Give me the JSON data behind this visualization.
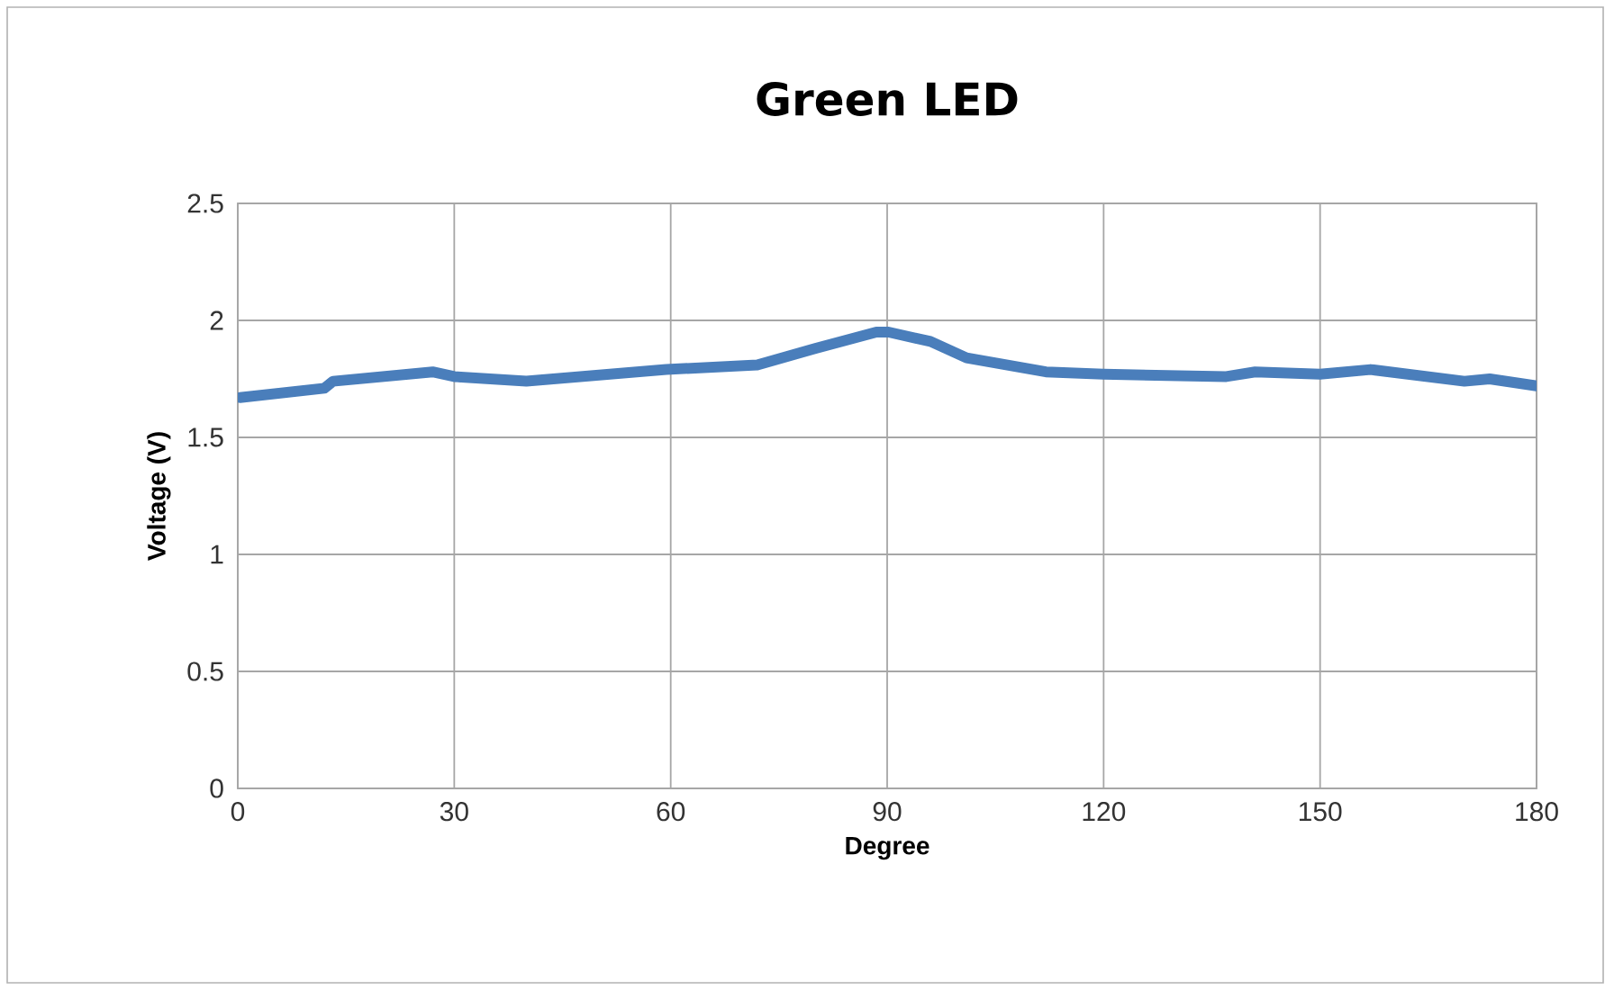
{
  "chart_data": {
    "type": "line",
    "title": "Green LED",
    "xlabel": "Degree",
    "ylabel": "Voltage (V)",
    "x": [
      0.3,
      12,
      13.2,
      27,
      30,
      40,
      59.4,
      72,
      80,
      88.5,
      90.2,
      96,
      101,
      112,
      120,
      137,
      141,
      150,
      157,
      170,
      173.5,
      180
    ],
    "values": [
      1.67,
      1.71,
      1.74,
      1.78,
      1.76,
      1.74,
      1.79,
      1.81,
      1.88,
      1.95,
      1.95,
      1.91,
      1.84,
      1.78,
      1.77,
      1.76,
      1.78,
      1.77,
      1.79,
      1.74,
      1.75,
      1.72
    ],
    "color": "#4a7ebb",
    "xlim": [
      0,
      180
    ],
    "ylim": [
      0,
      2.5
    ],
    "xticks": [
      0,
      30,
      60,
      90,
      120,
      150,
      180
    ],
    "yticks": [
      0,
      0.5,
      1,
      1.5,
      2,
      2.5
    ],
    "grid": true
  }
}
